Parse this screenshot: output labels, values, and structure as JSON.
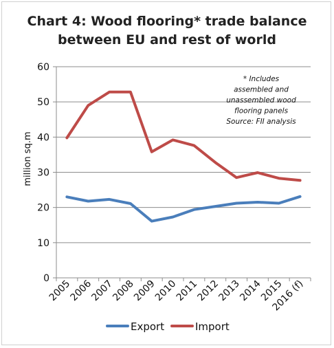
{
  "chart_data": {
    "type": "line",
    "title": [
      "Chart 4: Wood flooring* trade balance",
      "between EU and rest of world"
    ],
    "ylabel": "million sq.m",
    "xlabel": "",
    "ylim": [
      0,
      60
    ],
    "yticks": [
      0,
      10,
      20,
      30,
      40,
      50,
      60
    ],
    "grid": true,
    "legend_position": "bottom",
    "categories": [
      "2005",
      "2006",
      "2007",
      "2008",
      "2009",
      "2010",
      "2011",
      "2012",
      "2013",
      "2014",
      "2015",
      "2016 (f)"
    ],
    "series": [
      {
        "name": "Export",
        "color": "#4a7ebb",
        "values": [
          23,
          21.8,
          22.3,
          21.1,
          16.1,
          17.3,
          19.4,
          20.3,
          21.2,
          21.5,
          21.2,
          23.1
        ]
      },
      {
        "name": "Import",
        "color": "#be4b48",
        "values": [
          39.8,
          49,
          52.8,
          52.8,
          35.8,
          39.2,
          37.6,
          32.8,
          28.5,
          29.9,
          28.3,
          27.7
        ]
      }
    ],
    "annotation": [
      "* Includes",
      "assembled and",
      "unassembled wood",
      "flooring panels",
      "Source: FII analysis"
    ]
  }
}
